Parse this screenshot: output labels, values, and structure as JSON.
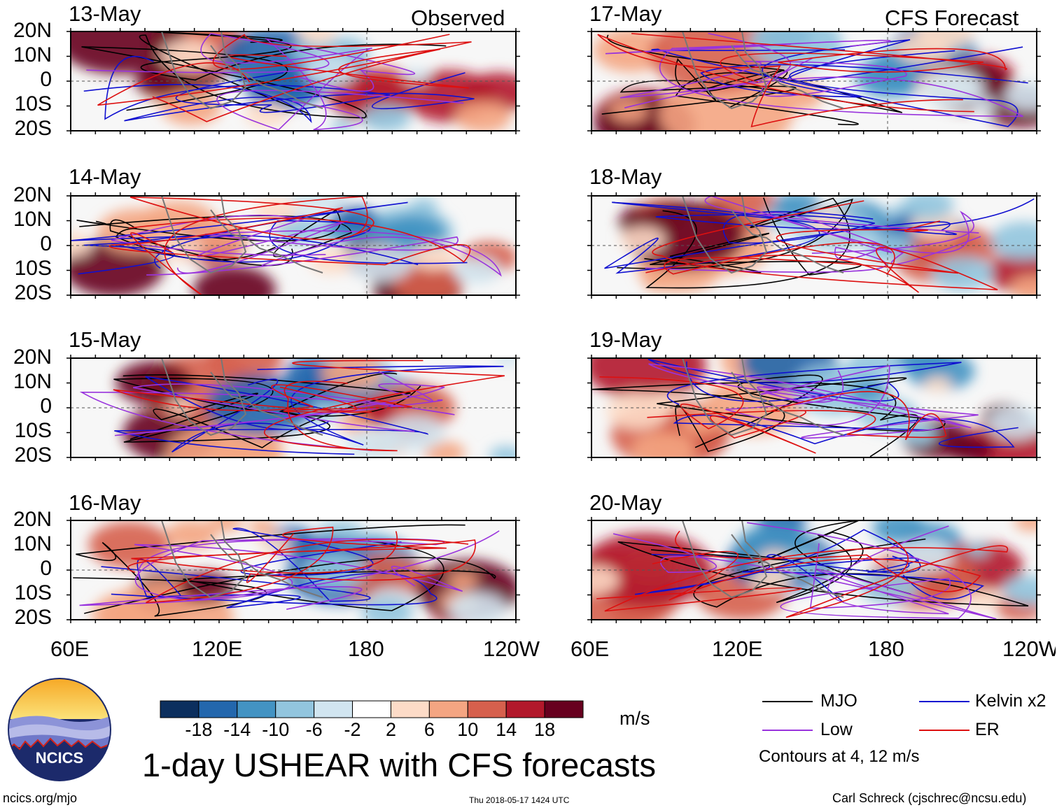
{
  "header": {
    "observed_label": "Observed",
    "forecast_label": "CFS Forecast"
  },
  "panels": {
    "observed": [
      "13-May",
      "14-May",
      "15-May",
      "16-May"
    ],
    "forecast": [
      "17-May",
      "18-May",
      "19-May",
      "20-May"
    ]
  },
  "lat_labels": [
    "20N",
    "10N",
    "0",
    "10S",
    "20S"
  ],
  "lon_labels": [
    "60E",
    "120E",
    "180",
    "120W"
  ],
  "colorbar": {
    "ticks": [
      "-18",
      "-14",
      "-10",
      "-6",
      "-2",
      "2",
      "6",
      "10",
      "14",
      "18"
    ],
    "units": "m/s",
    "colors": [
      "#0c2f5e",
      "#2367ad",
      "#4393c3",
      "#92c5de",
      "#d1e5f0",
      "#ffffff",
      "#fddbc7",
      "#f4a582",
      "#d6604d",
      "#b2182b",
      "#67001f"
    ]
  },
  "legend": {
    "mjo": "MJO",
    "kelvin": "Kelvin x2",
    "low": "Low",
    "er": "ER",
    "contours_note": "Contours at 4, 12 m/s",
    "colors": {
      "mjo": "#000000",
      "kelvin": "#1010d0",
      "low": "#9933dd",
      "er": "#dd1010"
    }
  },
  "title": "1-day USHEAR with CFS forecasts",
  "logo": {
    "text": "NCICS"
  },
  "footer": {
    "url": "ncics.org/mjo",
    "timestamp": "Thu 2018-05-17 1424 UTC",
    "credit": "Carl Schreck (cjschrec@ncsu.edu)"
  }
}
